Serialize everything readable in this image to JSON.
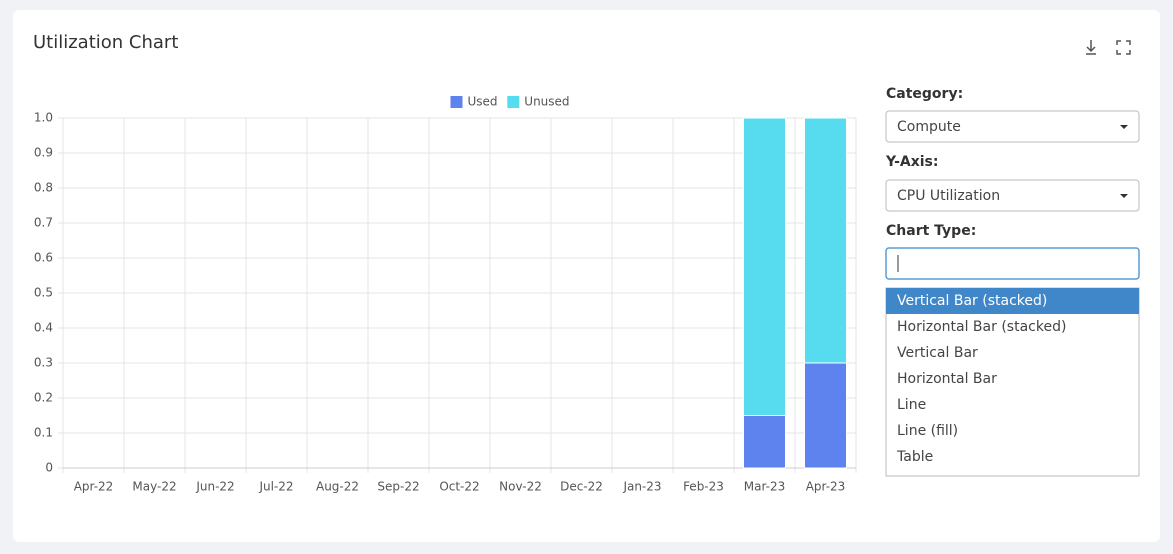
{
  "header": {
    "title": "Utilization Chart"
  },
  "chart_data": {
    "type": "stacked_bar",
    "categories": [
      "Apr-22",
      "May-22",
      "Jun-22",
      "Jul-22",
      "Aug-22",
      "Sep-22",
      "Oct-22",
      "Nov-22",
      "Dec-22",
      "Jan-23",
      "Feb-23",
      "Mar-23",
      "Apr-23"
    ],
    "series": [
      {
        "name": "Used",
        "color": "#5e82ee",
        "values": [
          0,
          0,
          0,
          0,
          0,
          0,
          0,
          0,
          0,
          0,
          0,
          0.15,
          0.3
        ]
      },
      {
        "name": "Unused",
        "color": "#56dcee",
        "values": [
          0,
          0,
          0,
          0,
          0,
          0,
          0,
          0,
          0,
          0,
          0,
          0.85,
          0.7
        ]
      }
    ],
    "ylim": [
      0,
      1
    ],
    "yticks": [
      0,
      0.1,
      0.2,
      0.3,
      0.4,
      0.5,
      0.6,
      0.7,
      0.8,
      0.9,
      {
        "value": 1,
        "label": "1.0"
      }
    ],
    "grid": true,
    "legend": "top"
  },
  "controls": {
    "category": {
      "label": "Category:",
      "value": "Compute"
    },
    "y_axis": {
      "label": "Y-Axis:",
      "value": "CPU Utilization"
    },
    "chart_type": {
      "label": "Chart Type:",
      "highlighted": 0,
      "options": [
        "Vertical Bar (stacked)",
        "Horizontal Bar (stacked)",
        "Vertical Bar",
        "Horizontal Bar",
        "Line",
        "Line (fill)",
        "Table"
      ]
    }
  }
}
